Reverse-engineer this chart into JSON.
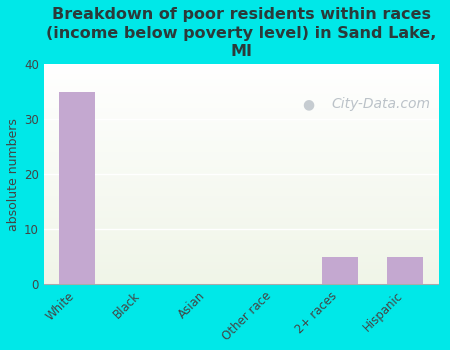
{
  "title": "Breakdown of poor residents within races\n(income below poverty level) in Sand Lake,\nMI",
  "categories": [
    "White",
    "Black",
    "Asian",
    "Other race",
    "2+ races",
    "Hispanic"
  ],
  "values": [
    35,
    0,
    0,
    0,
    5,
    5
  ],
  "bar_color": "#c4a8d0",
  "ylabel": "absolute numbers",
  "ylim": [
    0,
    40
  ],
  "yticks": [
    0,
    10,
    20,
    30,
    40
  ],
  "background_color": "#00e8e8",
  "plot_bg_color1": "#f0f5e8",
  "plot_bg_color2": "#ffffff",
  "title_color": "#2b3a3a",
  "axis_color": "#444444",
  "grid_color": "#ffffff",
  "watermark_text": "City-Data.com",
  "watermark_color": "#b0b8c0",
  "title_fontsize": 11.5,
  "ylabel_fontsize": 9,
  "tick_fontsize": 8.5,
  "watermark_fontsize": 10
}
